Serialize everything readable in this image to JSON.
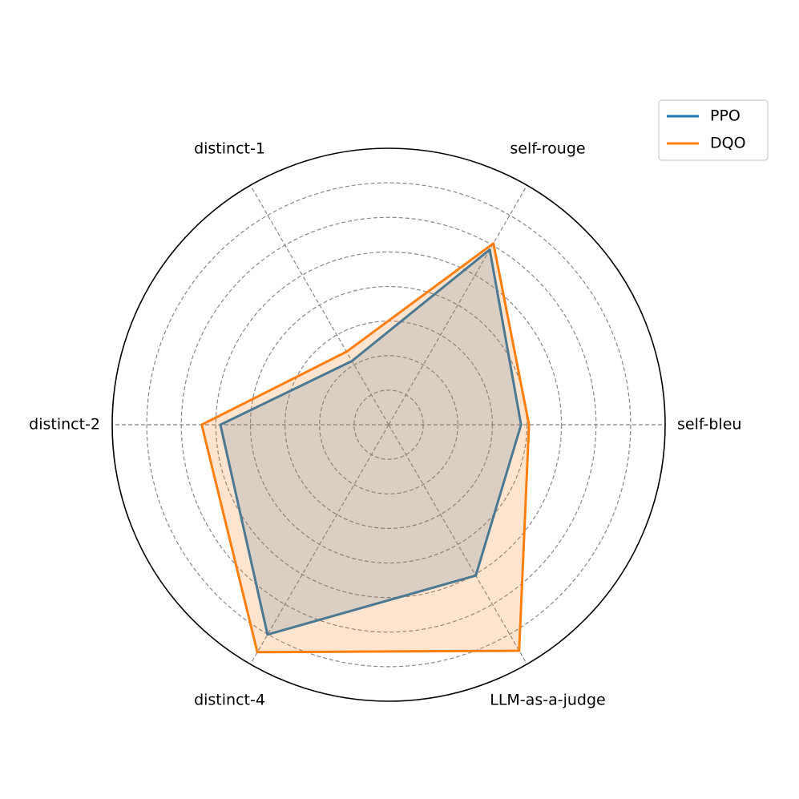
{
  "chart_data": {
    "type": "radar",
    "categories": [
      "self-bleu",
      "self-rouge",
      "distinct-1",
      "distinct-2",
      "distinct-4",
      "LLM-as-a-judge"
    ],
    "series": [
      {
        "name": "PPO",
        "color": "#1f77b4",
        "values": [
          3.83,
          5.85,
          2.13,
          4.87,
          7.01,
          5.04
        ]
      },
      {
        "name": "DQO",
        "color": "#ff7f0e",
        "values": [
          4.06,
          6.06,
          2.44,
          5.41,
          7.6,
          7.55
        ]
      }
    ],
    "ylim": [
      0,
      8
    ],
    "yticks": [
      1,
      2,
      3,
      4,
      5,
      6,
      7
    ],
    "grid": true,
    "legend": "upper right"
  }
}
